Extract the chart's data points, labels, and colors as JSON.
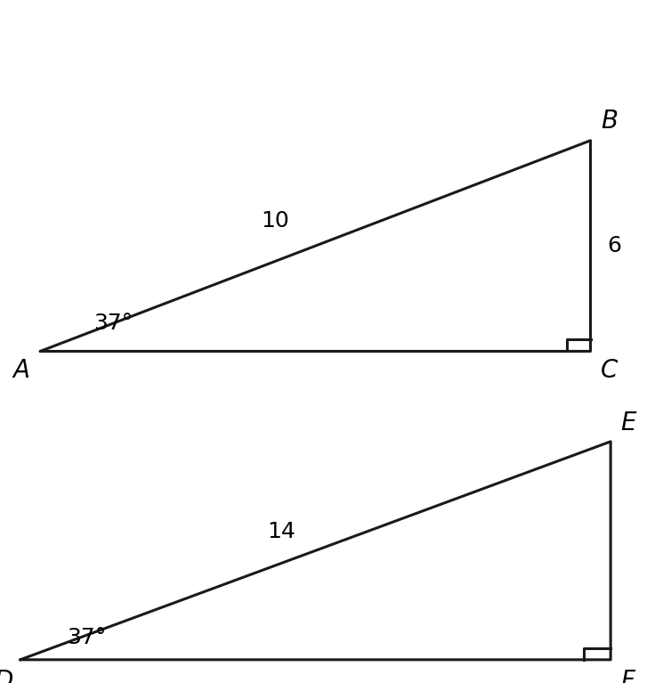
{
  "tri_abc": {
    "A": [
      0.06,
      0.0
    ],
    "C": [
      0.88,
      0.0
    ],
    "B": [
      0.88,
      0.6
    ],
    "label_A": "A",
    "label_B": "B",
    "label_C": "C",
    "hyp_label": "10",
    "vert_label": "6",
    "angle_label": "37°",
    "sq_size": 0.035
  },
  "tri_def": {
    "D": [
      0.03,
      0.0
    ],
    "F": [
      0.91,
      0.0
    ],
    "E": [
      0.91,
      0.75
    ],
    "label_D": "D",
    "label_E": "E",
    "label_F": "F",
    "hyp_label": "14",
    "angle_label": "37°",
    "sq_size": 0.04
  },
  "line_color": "#1a1a1a",
  "line_width": 2.2,
  "font_size": 18,
  "label_font_size": 20,
  "background_color": "#ffffff"
}
